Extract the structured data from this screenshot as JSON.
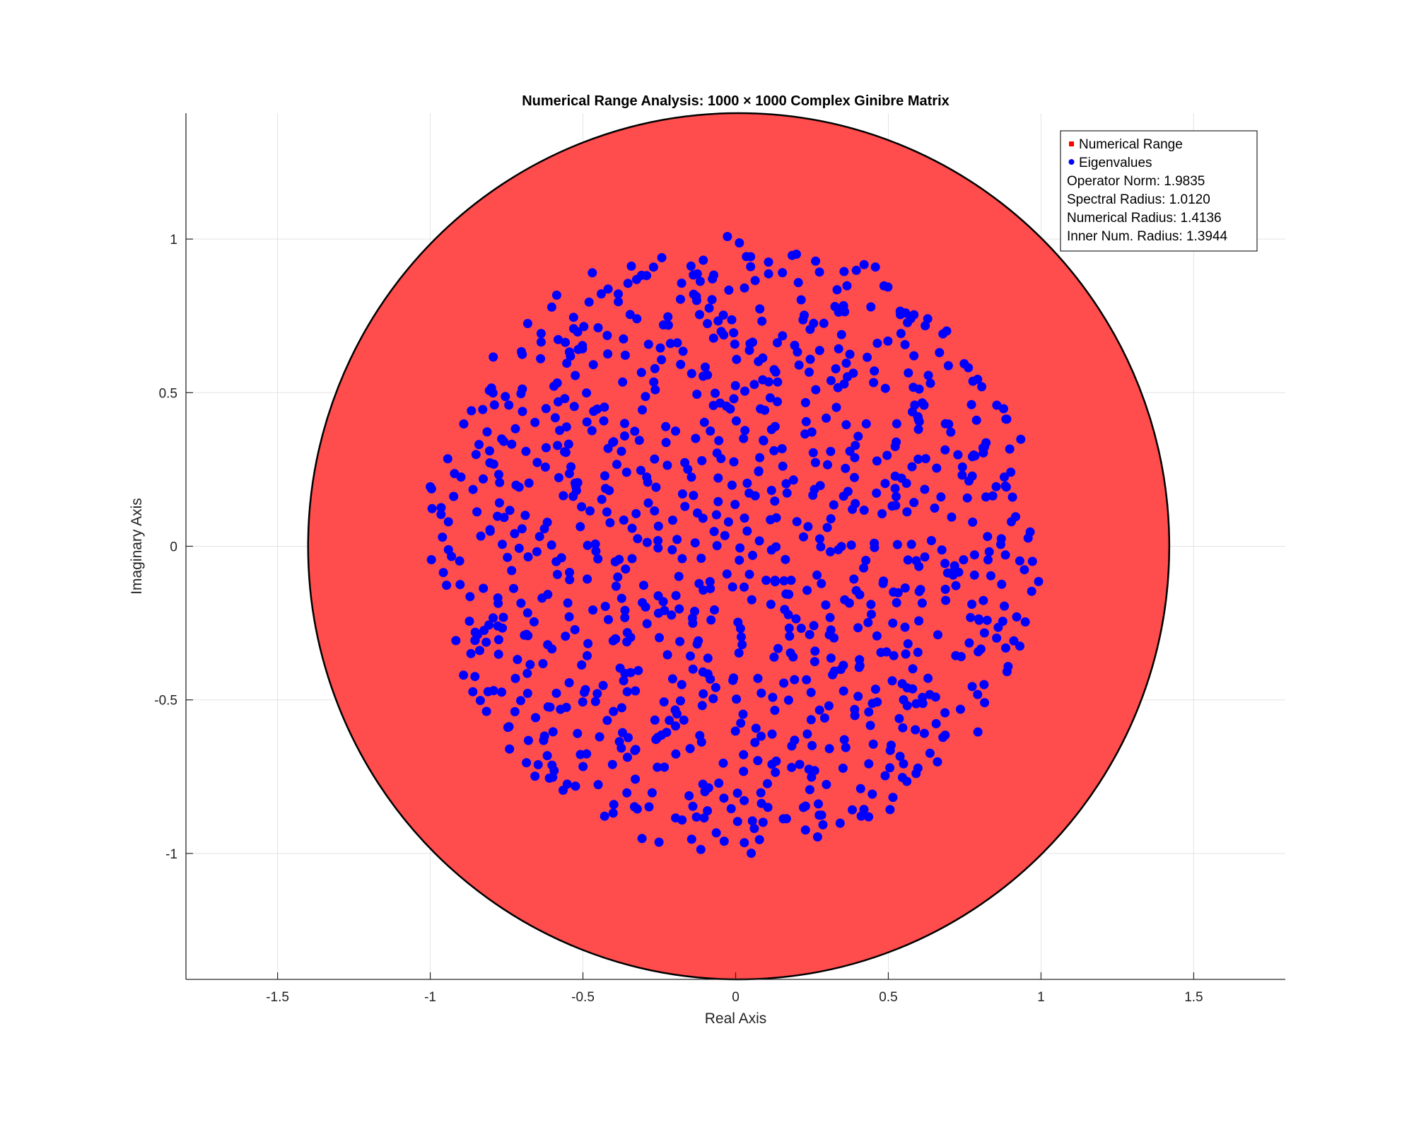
{
  "chart_data": {
    "type": "scatter",
    "title": "Numerical Range Analysis: 1000 × 1000 Complex Ginibre Matrix",
    "xlabel": "Real Axis",
    "ylabel": "Imaginary Axis",
    "xlim": [
      -1.8,
      1.8
    ],
    "ylim": [
      -1.41,
      1.41
    ],
    "xticks": [
      -1.5,
      -1,
      -0.5,
      0,
      0.5,
      1,
      1.5
    ],
    "xtick_labels": [
      "-1.5",
      "-1",
      "-0.5",
      "0",
      "0.5",
      "1",
      "1.5"
    ],
    "yticks": [
      -1,
      -0.5,
      0,
      0.5,
      1
    ],
    "ytick_labels": [
      "-1",
      "-0.5",
      "0",
      "0.5",
      "1"
    ],
    "grid": true,
    "legend_position": "top-right",
    "numerical_range": {
      "name": "Numerical Range",
      "shape": "disk",
      "center": [
        0.01,
        0
      ],
      "radius": 1.41,
      "color": "#ff4c4c",
      "edge_color": "#000000"
    },
    "eigenvalues": {
      "name": "Eigenvalues",
      "color": "#0000ff",
      "radius": 1.0,
      "count": 1000
    },
    "legend": {
      "entries": [
        {
          "label": "Numerical Range",
          "color": "#ff0000",
          "marker": "square"
        },
        {
          "label": "Eigenvalues",
          "color": "#0000ff",
          "marker": "circle"
        }
      ],
      "annotations": [
        "Operator Norm: 1.9835",
        "Spectral Radius: 1.0120",
        "Numerical Radius: 1.4136",
        "Inner Num. Radius: 1.3944"
      ]
    }
  }
}
